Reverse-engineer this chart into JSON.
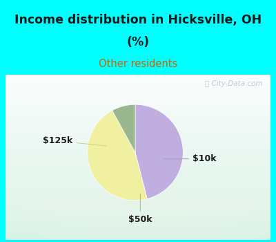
{
  "title_line1": "Income distribution in Hicksville, OH",
  "title_line2": "(%)",
  "subtitle": "Other residents",
  "title_color": "#1a1a1a",
  "subtitle_color": "#cc6600",
  "top_bg": "#00ffff",
  "chart_bg_colors": [
    "#e8f5ee",
    "#d0ecda",
    "#c8e8e0"
  ],
  "slices": [
    {
      "label": "$10k",
      "value": 46,
      "color": "#c0aee0"
    },
    {
      "label": "$125k",
      "value": 46,
      "color": "#f0f0a0"
    },
    {
      "label": "$50k",
      "value": 8,
      "color": "#9ab890"
    }
  ],
  "watermark": "City-Data.com",
  "label_color": "#1a1a1a",
  "label_fontsize": 9
}
